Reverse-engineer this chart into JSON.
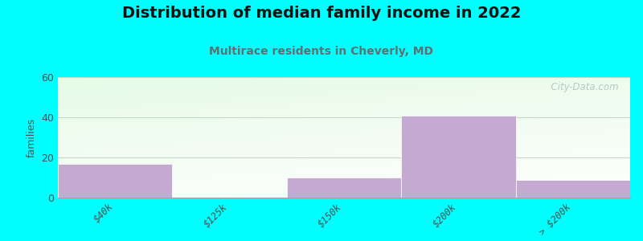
{
  "title": "Distribution of median family income in 2022",
  "subtitle": "Multirace residents in Cheverly, MD",
  "categories": [
    "$40k",
    "$125k",
    "$150k",
    "$200k",
    "> $200k"
  ],
  "values": [
    17,
    0,
    10,
    41,
    9
  ],
  "bar_color": "#c4aad0",
  "background_outer": "#00ffff",
  "background_plot": "#e8f5e8",
  "ylabel": "families",
  "ylim": [
    0,
    60
  ],
  "yticks": [
    0,
    20,
    40,
    60
  ],
  "grid_color": "#c8d8c8",
  "title_fontsize": 14,
  "subtitle_fontsize": 10,
  "subtitle_color": "#607070",
  "tick_label_color": "#505050",
  "watermark": "  City-Data.com"
}
